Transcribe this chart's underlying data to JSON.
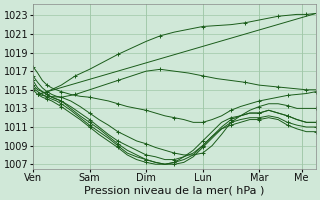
{
  "bg_color": "#d0e8d8",
  "grid_color": "#a0c8a8",
  "line_color": "#1a5c1a",
  "xlabel": "Pression niveau de la mer( hPa )",
  "xlabel_fontsize": 8,
  "tick_fontsize": 7,
  "ylim": [
    1006.5,
    1024.2
  ],
  "yticks": [
    1007,
    1009,
    1011,
    1013,
    1015,
    1017,
    1019,
    1021,
    1023
  ],
  "xtick_labels": [
    "Ven",
    "Sam",
    "Dim",
    "Lun",
    "Mar",
    "Me"
  ],
  "xtick_positions": [
    0,
    24,
    48,
    72,
    96,
    114
  ],
  "total_hours": 120,
  "series": [
    {
      "x": [
        2,
        120
      ],
      "y": [
        1014.5,
        1023.2
      ]
    },
    {
      "x": [
        2,
        6,
        12,
        18,
        24,
        30,
        36,
        42,
        48,
        54,
        60,
        66,
        72,
        78,
        84,
        90,
        96,
        100,
        104,
        108,
        112,
        116,
        120
      ],
      "y": [
        1014.5,
        1014.8,
        1015.5,
        1016.5,
        1017.2,
        1018.0,
        1018.8,
        1019.5,
        1020.2,
        1020.8,
        1021.2,
        1021.5,
        1021.8,
        1021.9,
        1022.0,
        1022.2,
        1022.5,
        1022.7,
        1022.9,
        1023.0,
        1023.1,
        1023.1,
        1023.2
      ]
    },
    {
      "x": [
        2,
        6,
        12,
        18,
        24,
        30,
        36,
        42,
        48,
        54,
        60,
        66,
        72,
        78,
        84,
        90,
        96,
        100,
        104,
        108,
        112,
        116,
        120
      ],
      "y": [
        1014.5,
        1014.3,
        1014.2,
        1014.5,
        1015.0,
        1015.5,
        1016.0,
        1016.5,
        1017.0,
        1017.2,
        1017.0,
        1016.8,
        1016.5,
        1016.2,
        1016.0,
        1015.8,
        1015.5,
        1015.4,
        1015.3,
        1015.2,
        1015.1,
        1015.0,
        1015.0
      ]
    },
    {
      "x": [
        0,
        2,
        4,
        6,
        8,
        10,
        12,
        16,
        20,
        24,
        28,
        32,
        36,
        40,
        44,
        48,
        52,
        56,
        60,
        64,
        68,
        72,
        76,
        80,
        84,
        88,
        92,
        96,
        100,
        104,
        108,
        112,
        116,
        120
      ],
      "y": [
        1017.5,
        1016.8,
        1016.0,
        1015.5,
        1015.2,
        1015.0,
        1014.8,
        1014.5,
        1014.3,
        1014.2,
        1014.0,
        1013.8,
        1013.5,
        1013.2,
        1013.0,
        1012.8,
        1012.5,
        1012.2,
        1012.0,
        1011.8,
        1011.5,
        1011.5,
        1011.8,
        1012.2,
        1012.8,
        1013.2,
        1013.5,
        1013.8,
        1014.0,
        1014.2,
        1014.4,
        1014.5,
        1014.6,
        1014.8
      ]
    },
    {
      "x": [
        0,
        2,
        4,
        6,
        8,
        10,
        12,
        16,
        20,
        24,
        28,
        32,
        36,
        40,
        44,
        48,
        52,
        56,
        60,
        64,
        68,
        72,
        76,
        80,
        84,
        88,
        92,
        96,
        100,
        104,
        108,
        112,
        116,
        120
      ],
      "y": [
        1016.5,
        1015.8,
        1015.2,
        1014.8,
        1014.5,
        1014.3,
        1014.2,
        1013.8,
        1013.2,
        1012.5,
        1011.8,
        1011.2,
        1010.5,
        1010.0,
        1009.5,
        1009.2,
        1008.8,
        1008.5,
        1008.2,
        1008.0,
        1008.0,
        1008.2,
        1009.0,
        1010.2,
        1011.5,
        1012.2,
        1012.8,
        1013.2,
        1013.5,
        1013.5,
        1013.3,
        1013.0,
        1013.0,
        1013.0
      ]
    },
    {
      "x": [
        0,
        2,
        4,
        6,
        8,
        10,
        12,
        16,
        20,
        24,
        28,
        32,
        36,
        40,
        44,
        48,
        52,
        56,
        60,
        64,
        68,
        72,
        76,
        80,
        84,
        88,
        92,
        96,
        100,
        104,
        108,
        112,
        116,
        120
      ],
      "y": [
        1016.0,
        1015.2,
        1014.8,
        1014.5,
        1014.2,
        1014.0,
        1013.8,
        1013.2,
        1012.5,
        1011.8,
        1011.0,
        1010.2,
        1009.5,
        1009.0,
        1008.5,
        1008.0,
        1007.8,
        1007.5,
        1007.5,
        1007.8,
        1008.2,
        1009.0,
        1010.0,
        1011.0,
        1011.8,
        1012.2,
        1012.5,
        1012.5,
        1012.8,
        1012.5,
        1012.2,
        1011.8,
        1011.5,
        1011.5
      ]
    },
    {
      "x": [
        0,
        2,
        4,
        6,
        8,
        10,
        12,
        16,
        20,
        24,
        28,
        32,
        36,
        40,
        44,
        48,
        52,
        56,
        60,
        64,
        68,
        72,
        76,
        80,
        84,
        88,
        92,
        96,
        100,
        104,
        108,
        112,
        116,
        120
      ],
      "y": [
        1015.5,
        1015.0,
        1014.8,
        1014.5,
        1014.2,
        1014.0,
        1013.8,
        1013.0,
        1012.2,
        1011.5,
        1010.8,
        1010.0,
        1009.2,
        1008.5,
        1008.0,
        1007.5,
        1007.2,
        1007.0,
        1007.2,
        1007.8,
        1008.5,
        1009.5,
        1010.5,
        1011.5,
        1012.0,
        1012.2,
        1012.5,
        1012.5,
        1012.8,
        1012.5,
        1012.2,
        1011.8,
        1011.5,
        1011.5
      ]
    },
    {
      "x": [
        0,
        2,
        4,
        6,
        8,
        10,
        12,
        16,
        20,
        24,
        28,
        32,
        36,
        40,
        44,
        48,
        52,
        56,
        60,
        64,
        68,
        72,
        76,
        80,
        84,
        88,
        92,
        96,
        100,
        104,
        108,
        112,
        116,
        120
      ],
      "y": [
        1015.2,
        1014.8,
        1014.5,
        1014.2,
        1014.0,
        1013.8,
        1013.5,
        1012.8,
        1012.0,
        1011.2,
        1010.5,
        1009.8,
        1009.0,
        1008.2,
        1007.8,
        1007.5,
        1007.2,
        1007.0,
        1007.0,
        1007.2,
        1007.8,
        1008.8,
        1009.8,
        1010.8,
        1011.5,
        1011.8,
        1012.0,
        1012.0,
        1012.2,
        1012.0,
        1011.5,
        1011.2,
        1011.0,
        1011.0
      ]
    },
    {
      "x": [
        0,
        2,
        4,
        6,
        8,
        10,
        12,
        16,
        20,
        24,
        28,
        32,
        36,
        40,
        44,
        48,
        52,
        56,
        60,
        64,
        68,
        72,
        76,
        80,
        84,
        88,
        92,
        96,
        100,
        104,
        108,
        112,
        116,
        120
      ],
      "y": [
        1015.0,
        1014.5,
        1014.2,
        1014.0,
        1013.8,
        1013.5,
        1013.2,
        1012.5,
        1011.8,
        1011.0,
        1010.2,
        1009.5,
        1008.8,
        1008.0,
        1007.5,
        1007.2,
        1007.0,
        1007.0,
        1007.2,
        1007.5,
        1008.0,
        1009.0,
        1010.0,
        1010.8,
        1011.2,
        1011.5,
        1011.8,
        1011.8,
        1012.0,
        1011.8,
        1011.2,
        1010.8,
        1010.5,
        1010.5
      ]
    }
  ]
}
